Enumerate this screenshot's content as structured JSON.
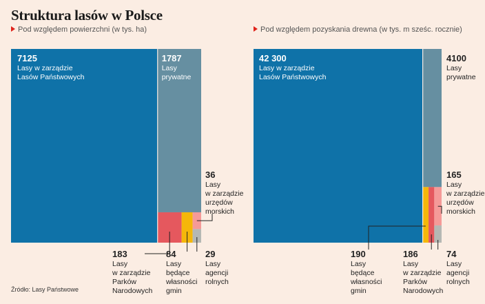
{
  "title": "Struktura lasów w Polsce",
  "source": "Źródło: Lasy Państwowe",
  "colors": {
    "background": "#fbede3",
    "state_forests": "#0f72a8",
    "private": "#668fa1",
    "parks": "#e5585e",
    "municipal": "#f5b70a",
    "maritime": "#f59a98",
    "agricultural": "#b5b8b4",
    "marker": "#e0231b"
  },
  "chart_data": [
    {
      "type": "treemap",
      "subtitle": "Pod względem powierzchni (w tys. ha)",
      "items": [
        {
          "value": 7125,
          "value_label": "7125",
          "label": [
            "Lasy w zarządzie",
            "Lasów Państwowych"
          ]
        },
        {
          "value": 1787,
          "value_label": "1787",
          "label": [
            "Lasy",
            "prywatne"
          ]
        },
        {
          "value": 183,
          "value_label": "183",
          "label": [
            "Lasy",
            "w zarządzie",
            "Parków",
            "Narodowych"
          ]
        },
        {
          "value": 84,
          "value_label": "84",
          "label": [
            "Lasy",
            "będące",
            "własności",
            "gmin"
          ]
        },
        {
          "value": 36,
          "value_label": "36",
          "label": [
            "Lasy",
            "w zarządzie",
            "urzędów",
            "morskich"
          ]
        },
        {
          "value": 29,
          "value_label": "29",
          "label": [
            "Lasy",
            "agencji",
            "rolnych"
          ]
        }
      ]
    },
    {
      "type": "treemap",
      "subtitle": "Pod względem pozyskania drewna (w tys. m sześc. rocznie)",
      "items": [
        {
          "value": 42300,
          "value_label": "42 300",
          "label": [
            "Lasy w zarządzie",
            "Lasów Państwowych"
          ]
        },
        {
          "value": 4100,
          "value_label": "4100",
          "label": [
            "Lasy",
            "prywatne"
          ]
        },
        {
          "value": 190,
          "value_label": "190",
          "label": [
            "Lasy",
            "będące",
            "własności",
            "gmin"
          ]
        },
        {
          "value": 186,
          "value_label": "186",
          "label": [
            "Lasy",
            "w zarządzie",
            "Parków",
            "Narodowych"
          ]
        },
        {
          "value": 165,
          "value_label": "165",
          "label": [
            "Lasy",
            "w zarządzie",
            "urzędów",
            "morskich"
          ]
        },
        {
          "value": 74,
          "value_label": "74",
          "label": [
            "Lasy",
            "agencji",
            "rolnych"
          ]
        }
      ]
    }
  ]
}
